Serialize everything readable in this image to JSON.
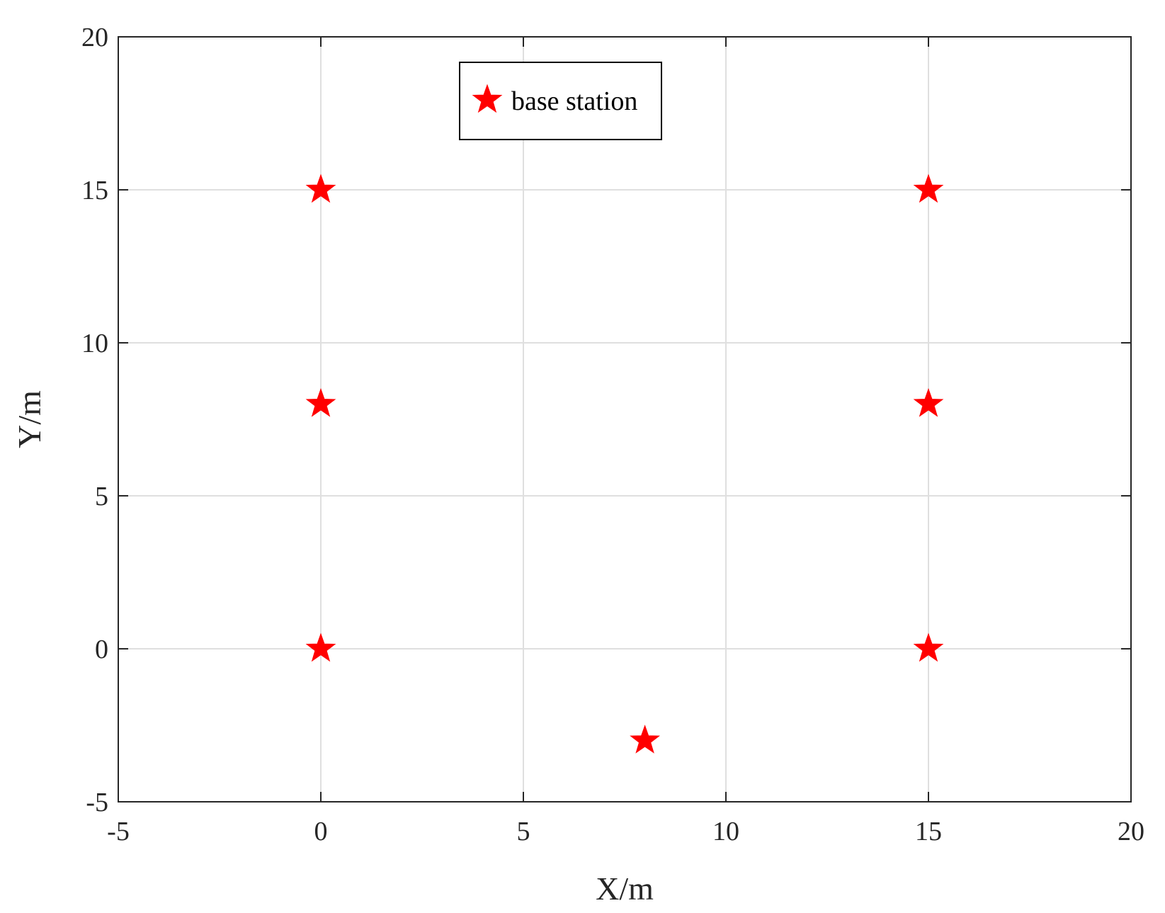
{
  "chart_data": {
    "type": "scatter",
    "title": "",
    "xlabel": "X/m",
    "ylabel": "Y/m",
    "xlim": [
      -5,
      20
    ],
    "ylim": [
      -5,
      20
    ],
    "xticks": [
      -5,
      0,
      5,
      10,
      15,
      20
    ],
    "yticks": [
      -5,
      0,
      5,
      10,
      15,
      20
    ],
    "xtick_labels": [
      "-5",
      "0",
      "5",
      "10",
      "15",
      "20"
    ],
    "ytick_labels": [
      "-5",
      "0",
      "5",
      "10",
      "15",
      "20"
    ],
    "grid": true,
    "legend_position": "top-center",
    "series": [
      {
        "name": "base station",
        "marker": "star",
        "color": "#ff0000",
        "points": [
          {
            "x": 0,
            "y": 15
          },
          {
            "x": 15,
            "y": 15
          },
          {
            "x": 0,
            "y": 8
          },
          {
            "x": 15,
            "y": 8
          },
          {
            "x": 0,
            "y": 0
          },
          {
            "x": 15,
            "y": 0
          },
          {
            "x": 8,
            "y": -3
          }
        ]
      }
    ]
  }
}
